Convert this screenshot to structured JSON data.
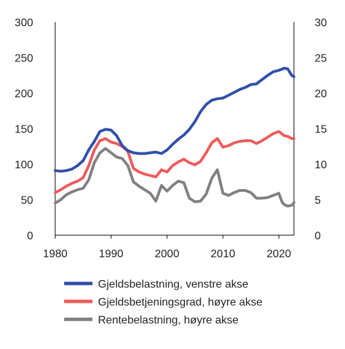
{
  "chart_data": {
    "type": "line",
    "title": "",
    "xlabel": "",
    "ylabel": "",
    "xlim": [
      1980,
      2022.7
    ],
    "ylim_left": [
      0,
      300
    ],
    "ylim_right": [
      0,
      30
    ],
    "x_ticks": [
      "1980",
      "1990",
      "2000",
      "2010",
      "2020"
    ],
    "x_tick_values": [
      1980,
      1990,
      2000,
      2010,
      2020
    ],
    "y_left_ticks": [
      "0",
      "50",
      "100",
      "150",
      "200",
      "250",
      "300"
    ],
    "y_left_tick_values": [
      0,
      50,
      100,
      150,
      200,
      250,
      300
    ],
    "y_right_ticks": [
      "0",
      "5",
      "10",
      "15",
      "20",
      "25",
      "30"
    ],
    "y_right_tick_values": [
      0,
      5,
      10,
      15,
      20,
      25,
      30
    ],
    "grid": false,
    "legend_position": "bottom",
    "series": [
      {
        "name": "Gjeldsbelastning, venstre akse",
        "axis": "left",
        "color": "#2f4fa8",
        "points": [
          [
            1980,
            91
          ],
          [
            1981,
            90
          ],
          [
            1982,
            91
          ],
          [
            1983,
            93
          ],
          [
            1984,
            98
          ],
          [
            1985,
            105
          ],
          [
            1986,
            120
          ],
          [
            1987,
            132
          ],
          [
            1988,
            146
          ],
          [
            1989,
            149
          ],
          [
            1990,
            148
          ],
          [
            1991,
            140
          ],
          [
            1992,
            126
          ],
          [
            1993,
            119
          ],
          [
            1994,
            116
          ],
          [
            1995,
            115
          ],
          [
            1996,
            115
          ],
          [
            1997,
            116
          ],
          [
            1998,
            117
          ],
          [
            1999,
            115
          ],
          [
            2000,
            120
          ],
          [
            2001,
            128
          ],
          [
            2002,
            135
          ],
          [
            2003,
            141
          ],
          [
            2004,
            149
          ],
          [
            2005,
            160
          ],
          [
            2006,
            174
          ],
          [
            2007,
            184
          ],
          [
            2008,
            190
          ],
          [
            2009,
            192
          ],
          [
            2010,
            193
          ],
          [
            2011,
            197
          ],
          [
            2012,
            201
          ],
          [
            2013,
            205
          ],
          [
            2014,
            208
          ],
          [
            2015,
            212
          ],
          [
            2016,
            213
          ],
          [
            2017,
            219
          ],
          [
            2018,
            225
          ],
          [
            2019,
            230
          ],
          [
            2020,
            232
          ],
          [
            2021,
            235
          ],
          [
            2021.6,
            234
          ],
          [
            2022.3,
            225
          ],
          [
            2022.7,
            223
          ]
        ]
      },
      {
        "name": "Gjeldsbetjeningsgrad, høyre akse",
        "axis": "right",
        "color": "#f05a5a",
        "points": [
          [
            1980,
            6.0
          ],
          [
            1981,
            6.4
          ],
          [
            1982,
            6.9
          ],
          [
            1983,
            7.3
          ],
          [
            1984,
            7.6
          ],
          [
            1985,
            8.1
          ],
          [
            1986,
            9.8
          ],
          [
            1987,
            12.0
          ],
          [
            1988,
            13.3
          ],
          [
            1989,
            13.6
          ],
          [
            1990,
            13.1
          ],
          [
            1991,
            12.9
          ],
          [
            1992,
            12.5
          ],
          [
            1993,
            11.8
          ],
          [
            1994,
            9.4
          ],
          [
            1995,
            8.9
          ],
          [
            1996,
            8.6
          ],
          [
            1997,
            8.4
          ],
          [
            1998,
            8.2
          ],
          [
            1999,
            9.2
          ],
          [
            2000,
            8.9
          ],
          [
            2001,
            9.8
          ],
          [
            2002,
            10.3
          ],
          [
            2003,
            10.7
          ],
          [
            2004,
            10.2
          ],
          [
            2005,
            9.9
          ],
          [
            2006,
            10.4
          ],
          [
            2007,
            11.6
          ],
          [
            2008,
            13.0
          ],
          [
            2009,
            13.6
          ],
          [
            2010,
            12.4
          ],
          [
            2011,
            12.6
          ],
          [
            2012,
            13.0
          ],
          [
            2013,
            13.2
          ],
          [
            2014,
            13.3
          ],
          [
            2015,
            13.3
          ],
          [
            2016,
            12.9
          ],
          [
            2017,
            13.3
          ],
          [
            2018,
            13.8
          ],
          [
            2019,
            14.3
          ],
          [
            2020,
            14.6
          ],
          [
            2021,
            14.0
          ],
          [
            2021.6,
            13.9
          ],
          [
            2022.3,
            13.6
          ],
          [
            2022.7,
            13.6
          ]
        ]
      },
      {
        "name": "Rentebelastning, høyre akse",
        "axis": "right",
        "color": "#808080",
        "points": [
          [
            1980,
            4.5
          ],
          [
            1981,
            5.0
          ],
          [
            1982,
            5.7
          ],
          [
            1983,
            6.1
          ],
          [
            1984,
            6.4
          ],
          [
            1985,
            6.6
          ],
          [
            1986,
            7.8
          ],
          [
            1987,
            10.2
          ],
          [
            1988,
            11.6
          ],
          [
            1989,
            12.2
          ],
          [
            1990,
            11.6
          ],
          [
            1991,
            11.0
          ],
          [
            1992,
            10.8
          ],
          [
            1993,
            9.8
          ],
          [
            1994,
            7.5
          ],
          [
            1995,
            6.9
          ],
          [
            1996,
            6.4
          ],
          [
            1997,
            5.9
          ],
          [
            1998,
            4.8
          ],
          [
            1999,
            7.0
          ],
          [
            2000,
            6.2
          ],
          [
            2001,
            7.0
          ],
          [
            2002,
            7.6
          ],
          [
            2003,
            7.4
          ],
          [
            2004,
            5.2
          ],
          [
            2005,
            4.7
          ],
          [
            2006,
            4.8
          ],
          [
            2007,
            5.8
          ],
          [
            2008,
            8.0
          ],
          [
            2009,
            9.2
          ],
          [
            2010,
            5.9
          ],
          [
            2011,
            5.6
          ],
          [
            2012,
            6.0
          ],
          [
            2013,
            6.3
          ],
          [
            2014,
            6.3
          ],
          [
            2015,
            6.0
          ],
          [
            2016,
            5.2
          ],
          [
            2017,
            5.2
          ],
          [
            2018,
            5.3
          ],
          [
            2019,
            5.6
          ],
          [
            2020,
            5.9
          ],
          [
            2020.6,
            4.6
          ],
          [
            2021,
            4.3
          ],
          [
            2021.6,
            4.1
          ],
          [
            2022.3,
            4.2
          ],
          [
            2022.7,
            4.6
          ]
        ]
      }
    ]
  }
}
